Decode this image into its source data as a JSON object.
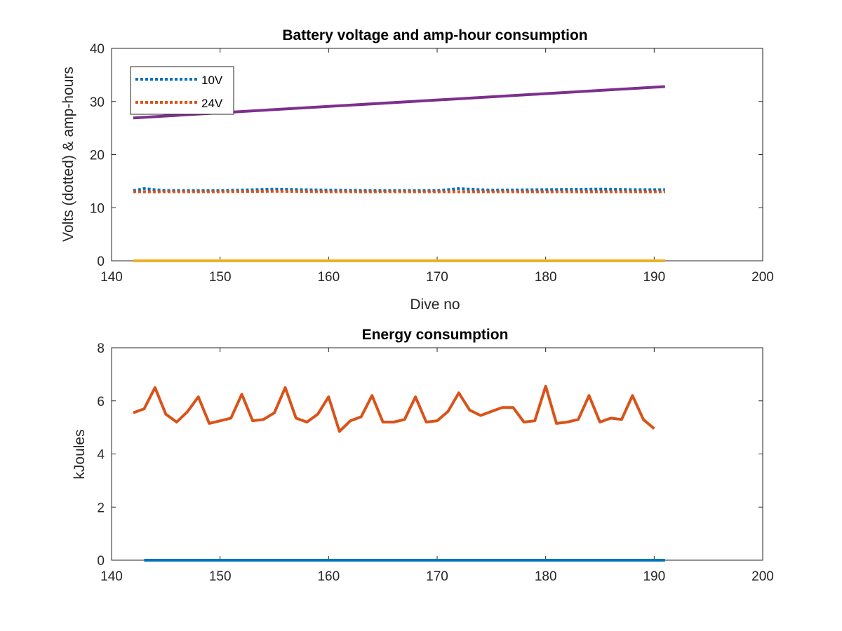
{
  "chart_data": [
    {
      "type": "line",
      "title": "Battery voltage and amp-hour consumption",
      "xlabel": "Dive no",
      "ylabel": "Volts (dotted) & amp-hours",
      "xlim": [
        140,
        200
      ],
      "ylim": [
        0,
        40
      ],
      "xticks": [
        140,
        150,
        160,
        170,
        180,
        190,
        200
      ],
      "yticks": [
        0,
        10,
        20,
        30,
        40
      ],
      "legend_position": "top-left",
      "series": [
        {
          "name": "10V",
          "color": "#0072BD",
          "style": "dotted",
          "x": [
            142,
            143,
            145,
            150,
            155,
            160,
            165,
            170,
            172,
            175,
            180,
            185,
            188,
            191
          ],
          "y": [
            13.2,
            13.6,
            13.2,
            13.2,
            13.5,
            13.3,
            13.2,
            13.2,
            13.6,
            13.3,
            13.4,
            13.5,
            13.4,
            13.4
          ]
        },
        {
          "name": "24V",
          "color": "#D95319",
          "style": "dotted",
          "x": [
            142,
            145,
            150,
            155,
            160,
            165,
            170,
            175,
            180,
            185,
            191
          ],
          "y": [
            13.0,
            13.0,
            13.0,
            13.1,
            13.0,
            13.0,
            13.0,
            13.0,
            13.0,
            13.0,
            13.0
          ]
        },
        {
          "color": "#EDB120",
          "style": "solid",
          "x": [
            142,
            191
          ],
          "y": [
            0,
            0
          ]
        },
        {
          "color": "#7E2F8E",
          "style": "solid",
          "x": [
            142,
            191
          ],
          "y": [
            26.9,
            32.8
          ]
        }
      ]
    },
    {
      "type": "line",
      "title": "Energy consumption",
      "xlabel": "",
      "ylabel": "kJoules",
      "xlim": [
        140,
        200
      ],
      "ylim": [
        0,
        8
      ],
      "xticks": [
        140,
        150,
        160,
        170,
        180,
        190,
        200
      ],
      "yticks": [
        0,
        2,
        4,
        6,
        8
      ],
      "series": [
        {
          "color": "#D95319",
          "style": "solid",
          "x": [
            142,
            143,
            144,
            145,
            146,
            147,
            148,
            149,
            150,
            151,
            152,
            153,
            154,
            155,
            156,
            157,
            158,
            159,
            160,
            161,
            162,
            163,
            164,
            165,
            166,
            167,
            168,
            169,
            170,
            171,
            172,
            173,
            174,
            175,
            176,
            177,
            178,
            179,
            180,
            181,
            182,
            183,
            184,
            185,
            186,
            187,
            188,
            189,
            190,
            191
          ],
          "y": [
            5.55,
            5.7,
            6.5,
            5.5,
            5.2,
            5.6,
            6.15,
            5.15,
            5.25,
            5.35,
            6.25,
            5.25,
            5.3,
            5.55,
            6.5,
            5.35,
            5.2,
            5.5,
            6.15,
            4.85,
            5.25,
            5.4,
            6.2,
            5.2,
            5.2,
            5.3,
            6.15,
            5.2,
            5.25,
            5.6,
            6.3,
            5.65,
            5.45,
            5.6,
            5.75,
            5.75,
            5.2,
            5.25,
            6.55,
            5.15,
            5.2,
            5.3,
            6.2,
            5.2,
            5.35,
            5.3,
            6.2,
            5.3,
            4.95,
            null
          ]
        },
        {
          "color": "#0072BD",
          "style": "solid",
          "x": [
            143,
            191
          ],
          "y": [
            0,
            0
          ]
        }
      ]
    }
  ]
}
